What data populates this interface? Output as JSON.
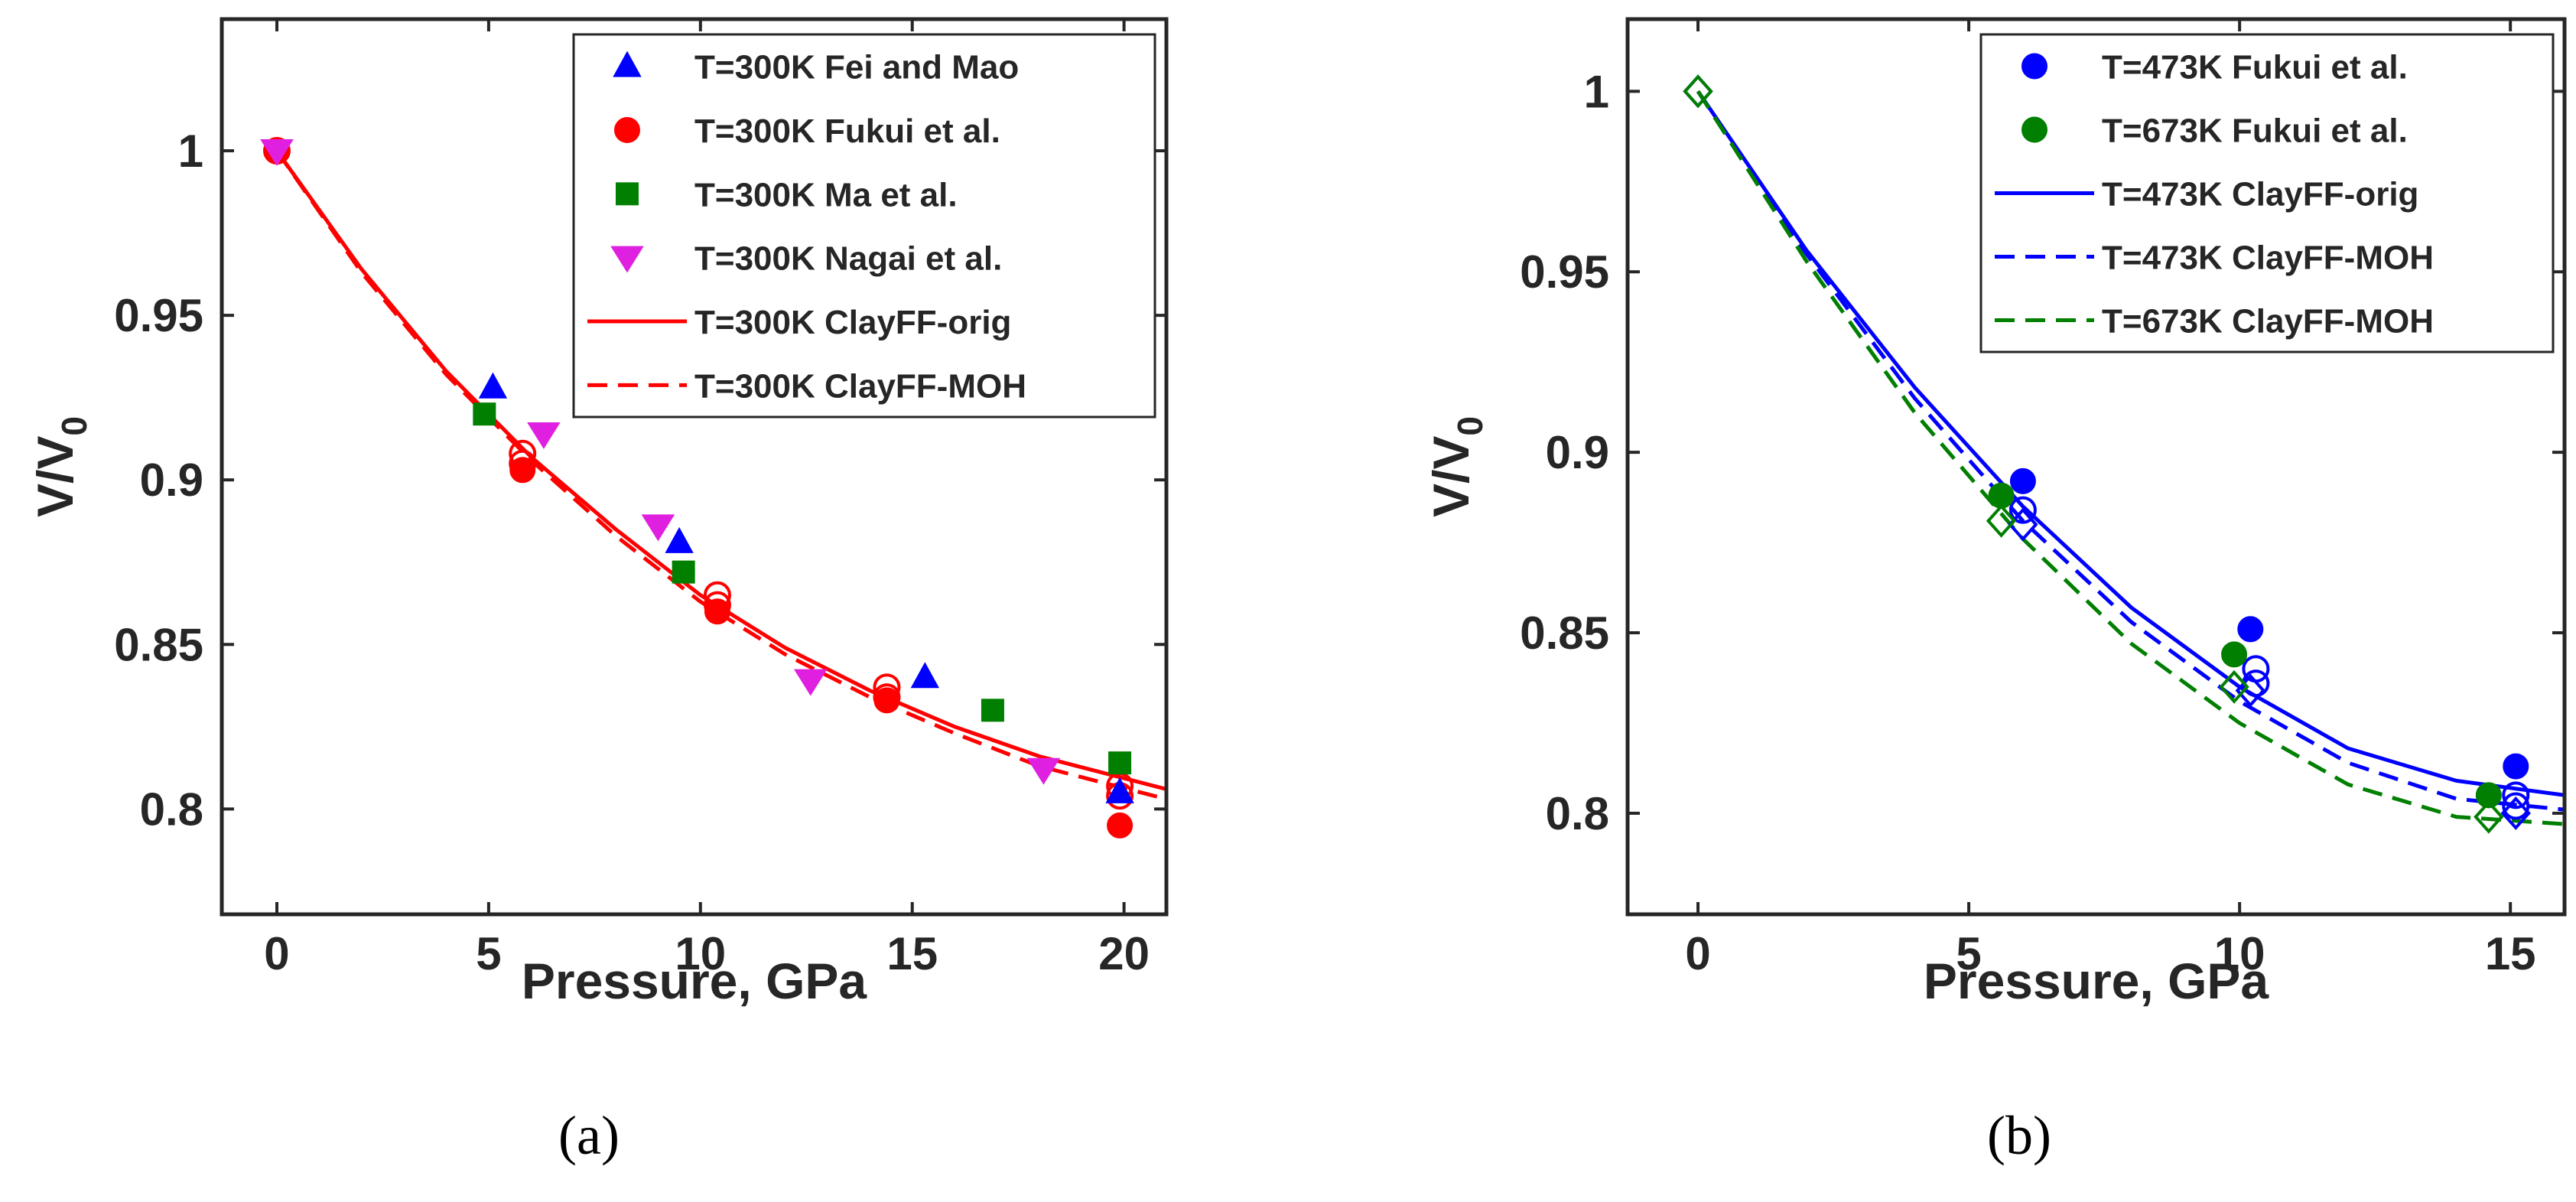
{
  "chart_data": [
    {
      "panel_label": "(a)",
      "type": "scatter",
      "xlabel": "Pressure, GPa",
      "ylabel": "V/V",
      "ylabel_sub": "0",
      "xlim": [
        -1.3,
        21
      ],
      "ylim": [
        0.768,
        1.04
      ],
      "xticks": [
        0,
        5,
        10,
        15,
        20
      ],
      "yticks": [
        0.8,
        0.85,
        0.9,
        0.95,
        1
      ],
      "ytick_labels": [
        "0.8",
        "0.85",
        "0.9",
        "0.95",
        "1"
      ],
      "legend_position": "top-right",
      "series": [
        {
          "name": "T=300K Fei and Mao",
          "kind": "marker",
          "marker": "triangle-up",
          "color": "#0000ff",
          "x": [
            5.1,
            9.5,
            15.3,
            19.9
          ],
          "y": [
            0.928,
            0.881,
            0.84,
            0.805
          ]
        },
        {
          "name": "T=300K Fukui et al.",
          "kind": "marker",
          "marker": "circle",
          "color": "#ff0000",
          "x": [
            0,
            5.8,
            10.4,
            14.4,
            19.9
          ],
          "y": [
            1.0,
            0.903,
            0.86,
            0.833,
            0.795
          ]
        },
        {
          "name": "T=300K Ma et al.",
          "kind": "marker",
          "marker": "square",
          "color": "#007f00",
          "x": [
            4.9,
            9.6,
            16.9,
            19.9
          ],
          "y": [
            0.92,
            0.872,
            0.83,
            0.814
          ]
        },
        {
          "name": "T=300K Nagai et al.",
          "kind": "marker",
          "marker": "triangle-down",
          "color": "#e020e0",
          "x": [
            0,
            6.3,
            9.0,
            12.6,
            18.1
          ],
          "y": [
            1.0,
            0.914,
            0.886,
            0.839,
            0.812
          ]
        },
        {
          "name": "T=300K ClayFF-orig",
          "kind": "line",
          "dash": "solid",
          "color": "#ff0000",
          "x": [
            0,
            2,
            4,
            6,
            8,
            10,
            12,
            14,
            16,
            18,
            21
          ],
          "y": [
            1.0,
            0.964,
            0.933,
            0.907,
            0.885,
            0.865,
            0.849,
            0.836,
            0.825,
            0.816,
            0.806
          ]
        },
        {
          "name": "T=300K ClayFF-MOH",
          "kind": "line",
          "dash": "dashed",
          "color": "#ff0000",
          "x": [
            0,
            2,
            4,
            6,
            8,
            10,
            12,
            14,
            16,
            18,
            21
          ],
          "y": [
            1.0,
            0.963,
            0.932,
            0.906,
            0.883,
            0.863,
            0.847,
            0.834,
            0.823,
            0.813,
            0.803
          ]
        },
        {
          "name": "",
          "kind": "open-marker",
          "marker": "circle",
          "color": "#ff0000",
          "x": [
            0,
            5.8,
            5.8,
            10.4,
            10.4,
            14.4,
            14.4,
            19.9,
            19.9
          ],
          "y": [
            1.0,
            0.908,
            0.905,
            0.865,
            0.862,
            0.837,
            0.834,
            0.807,
            0.804
          ]
        }
      ]
    },
    {
      "panel_label": "(b)",
      "type": "scatter",
      "xlabel": "Pressure, GPa",
      "ylabel": "V/V",
      "ylabel_sub": "0",
      "xlim": [
        -1.3,
        16
      ],
      "ylim": [
        0.772,
        1.02
      ],
      "xticks": [
        0,
        5,
        10,
        15
      ],
      "yticks": [
        0.8,
        0.85,
        0.9,
        0.95,
        1
      ],
      "ytick_labels": [
        "0.8",
        "0.85",
        "0.9",
        "0.95",
        "1"
      ],
      "legend_position": "top-right",
      "series": [
        {
          "name": "T=473K Fukui et al.",
          "kind": "marker",
          "marker": "circle",
          "color": "#0000ff",
          "x": [
            6.0,
            10.2,
            15.1
          ],
          "y": [
            0.892,
            0.851,
            0.813
          ]
        },
        {
          "name": "T=673K Fukui et al.",
          "kind": "marker",
          "marker": "circle",
          "color": "#007f00",
          "x": [
            5.6,
            9.9,
            14.6
          ],
          "y": [
            0.888,
            0.844,
            0.805
          ]
        },
        {
          "name": "T=473K ClayFF-orig",
          "kind": "line",
          "dash": "solid",
          "color": "#0000ff",
          "x": [
            0,
            2,
            4,
            6,
            8,
            10,
            12,
            14,
            16
          ],
          "y": [
            1.0,
            0.956,
            0.918,
            0.885,
            0.857,
            0.835,
            0.818,
            0.809,
            0.805
          ]
        },
        {
          "name": "T=473K ClayFF-MOH",
          "kind": "line",
          "dash": "dashed",
          "color": "#0000ff",
          "x": [
            0,
            2,
            4,
            6,
            8,
            10,
            12,
            14,
            16
          ],
          "y": [
            1.0,
            0.955,
            0.915,
            0.881,
            0.853,
            0.831,
            0.814,
            0.804,
            0.801
          ]
        },
        {
          "name": "T=673K ClayFF-MOH",
          "kind": "line",
          "dash": "dashed",
          "color": "#007f00",
          "x": [
            0,
            2,
            4,
            6,
            8,
            10,
            12,
            14,
            16
          ],
          "y": [
            1.0,
            0.953,
            0.911,
            0.876,
            0.847,
            0.825,
            0.808,
            0.799,
            0.797
          ]
        },
        {
          "name": "",
          "kind": "open-marker",
          "marker": "circle",
          "color": "#0000ff",
          "x": [
            6.0,
            10.3,
            10.3,
            15.1,
            15.1
          ],
          "y": [
            0.884,
            0.84,
            0.836,
            0.805,
            0.802
          ]
        },
        {
          "name": "",
          "kind": "open-marker",
          "marker": "diamond",
          "color": "#0000ff",
          "x": [
            0,
            6.0,
            10.2,
            15.1
          ],
          "y": [
            1.0,
            0.88,
            0.834,
            0.8
          ]
        },
        {
          "name": "",
          "kind": "open-marker",
          "marker": "diamond",
          "color": "#007f00",
          "x": [
            0,
            5.6,
            9.9,
            14.6
          ],
          "y": [
            1.0,
            0.881,
            0.835,
            0.799
          ]
        }
      ]
    }
  ]
}
